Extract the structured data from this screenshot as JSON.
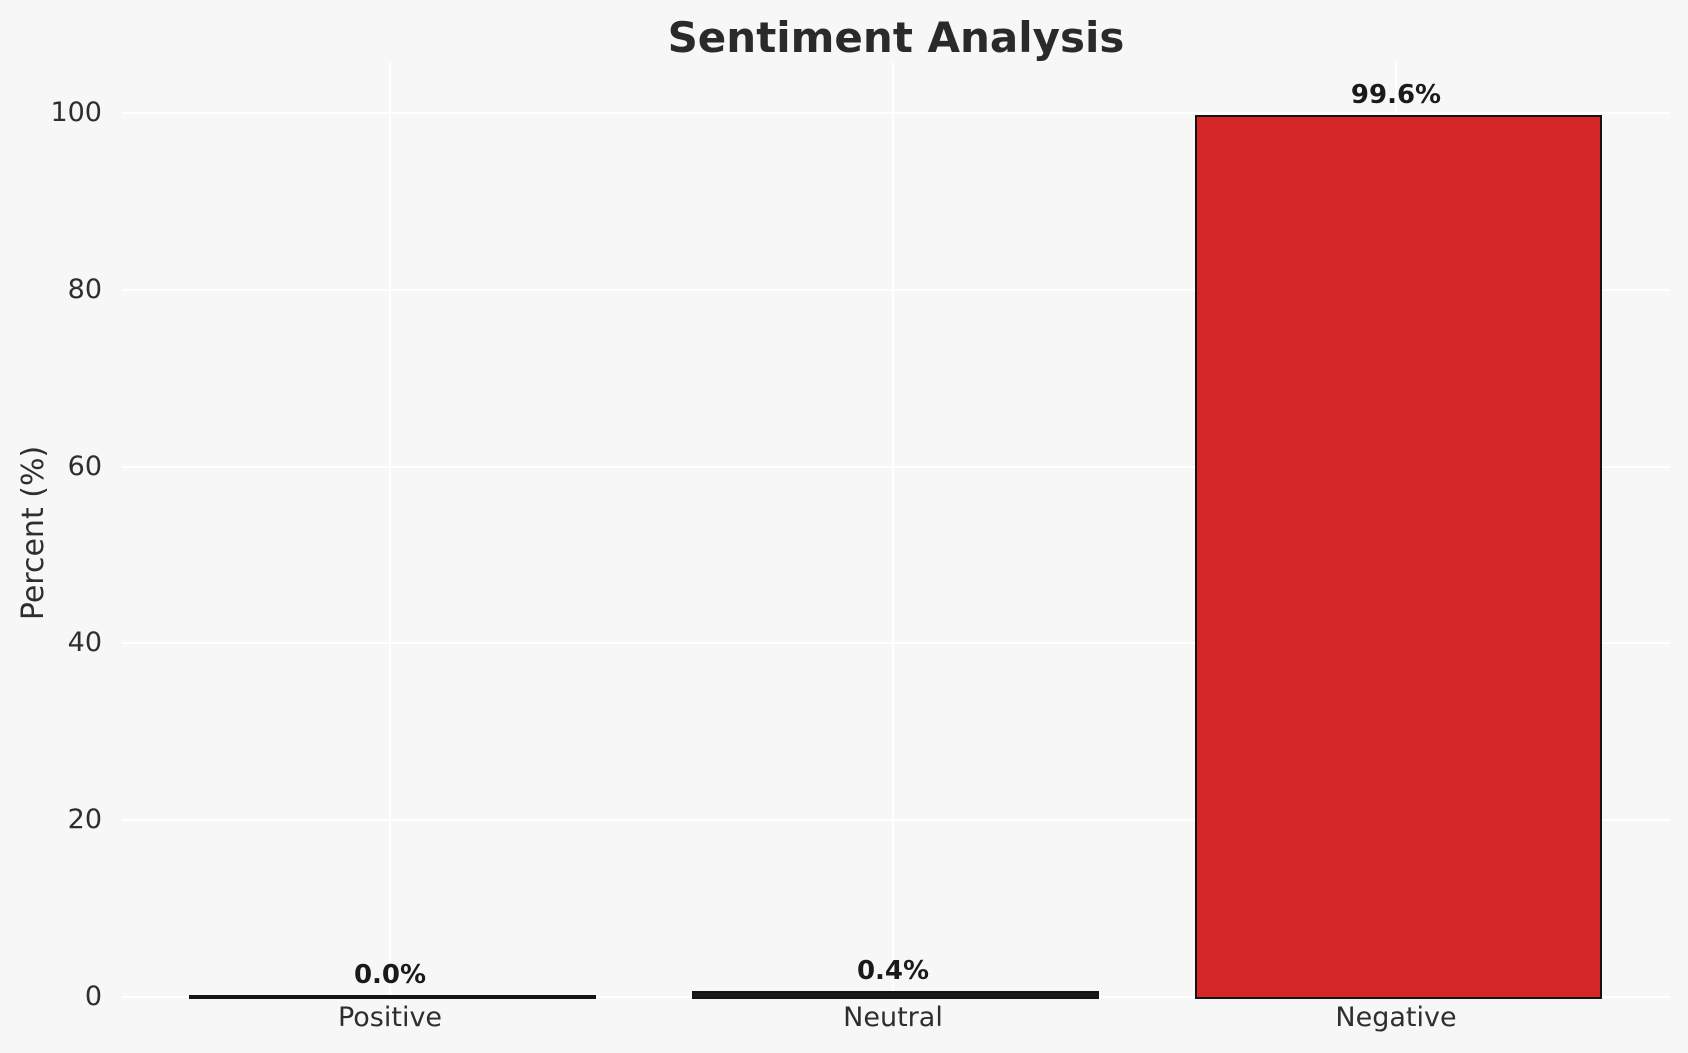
{
  "chart_data": {
    "type": "bar",
    "title": "Sentiment Analysis",
    "xlabel": "",
    "ylabel": "Percent (%)",
    "categories": [
      "Positive",
      "Neutral",
      "Negative"
    ],
    "values": [
      0.0,
      0.4,
      99.6
    ],
    "value_labels": [
      "0.0%",
      "0.4%",
      "99.6%"
    ],
    "yticks": [
      0,
      20,
      40,
      60,
      80,
      100
    ],
    "ylim": [
      0,
      105.8
    ],
    "grid": true,
    "legend_position": "none",
    "bar_colors": [
      "none",
      "#1a1a1a",
      "#d62728"
    ],
    "bar_edge_color": "#141414",
    "background_color": "#f7f7f7",
    "grid_color": "#ffffff",
    "text_color": "#2e2e2e",
    "value_label_color": "#1a1a1a"
  }
}
